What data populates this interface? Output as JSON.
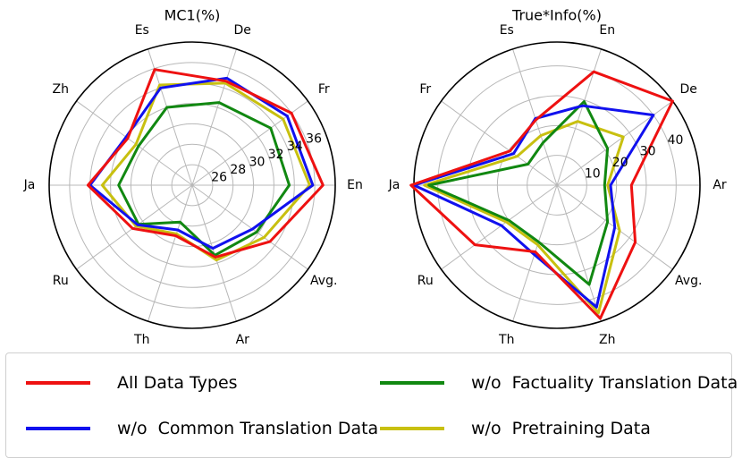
{
  "chart_data": [
    {
      "type": "radar",
      "title": "MC1(%)",
      "categories": [
        "En",
        "Fr",
        "De",
        "Es",
        "Zh",
        "Ja",
        "Ru",
        "Th",
        "Ar",
        "Avg."
      ],
      "radial_ticks": [
        26,
        28,
        30,
        32,
        34,
        36
      ],
      "rlim": [
        24,
        38
      ],
      "grid": true,
      "series": [
        {
          "name": "All Data Types",
          "color": "#ee1111",
          "values": [
            36.8,
            36.0,
            34.7,
            35.9,
            31.8,
            34.2,
            31.2,
            29.2,
            31.4,
            33.4
          ]
        },
        {
          "name": "w/o  Common Translation Data",
          "color": "#1111ee",
          "values": [
            35.8,
            35.5,
            35.0,
            34.0,
            32.0,
            34.0,
            30.6,
            28.6,
            30.5,
            31.3
          ]
        },
        {
          "name": "w/o  Factuality Translation Data",
          "color": "#118811",
          "values": [
            33.5,
            33.5,
            32.5,
            32.0,
            30.5,
            31.2,
            30.5,
            27.8,
            31.2,
            31.8
          ]
        },
        {
          "name": "w/o  Pretraining Data",
          "color": "#c8c010",
          "values": [
            35.5,
            35.0,
            34.5,
            34.3,
            30.8,
            32.8,
            30.8,
            29.0,
            31.7,
            32.7
          ]
        }
      ]
    },
    {
      "type": "radar",
      "title": "True*Info(%)",
      "categories": [
        "Ar",
        "De",
        "En",
        "Es",
        "Fr",
        "Ja",
        "Ru",
        "Th",
        "Zh",
        "Avg."
      ],
      "radial_ticks": [
        10,
        20,
        30,
        40
      ],
      "rlim": [
        0,
        48
      ],
      "grid": true,
      "series": [
        {
          "name": "All Data Types",
          "color": "#ee1111",
          "values": [
            25.0,
            48.0,
            40.0,
            23.0,
            19.5,
            49.0,
            34.0,
            23.5,
            47.0,
            32.5
          ]
        },
        {
          "name": "w/o  Common Translation Data",
          "color": "#1111ee",
          "values": [
            18.0,
            40.0,
            28.0,
            23.5,
            18.0,
            48.0,
            23.0,
            24.5,
            43.0,
            24.0
          ]
        },
        {
          "name": "w/o  Factuality Translation Data",
          "color": "#118811",
          "values": [
            16.0,
            21.0,
            29.5,
            15.0,
            12.0,
            43.0,
            20.0,
            20.0,
            35.0,
            21.0
          ]
        },
        {
          "name": "w/o  Pretraining Data",
          "color": "#c8c010",
          "values": [
            17.0,
            27.5,
            22.5,
            17.5,
            16.5,
            44.5,
            21.0,
            21.0,
            45.0,
            26.0
          ]
        }
      ]
    }
  ],
  "legend": {
    "items": [
      {
        "label": "All Data Types",
        "color": "#ee1111"
      },
      {
        "label": "w/o  Factuality Translation Data",
        "color": "#118811"
      },
      {
        "label": "w/o  Common Translation Data",
        "color": "#1111ee"
      },
      {
        "label": "w/o  Pretraining Data",
        "color": "#c8c010"
      }
    ]
  }
}
